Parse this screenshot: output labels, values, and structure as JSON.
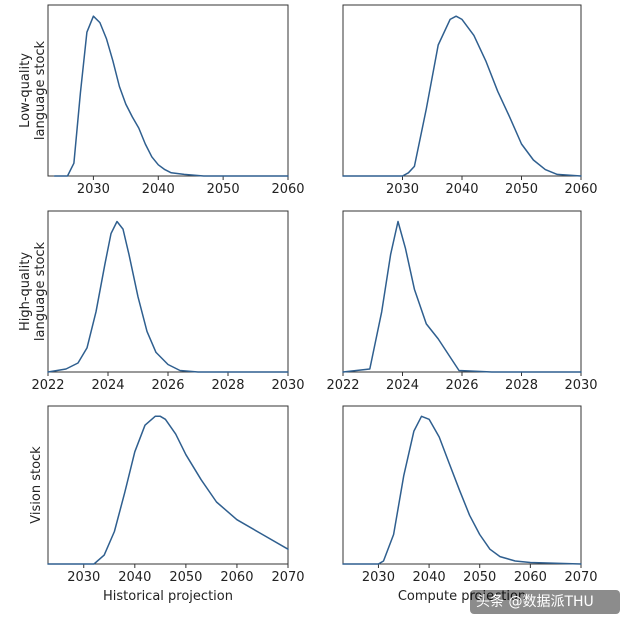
{
  "chart_data": [
    {
      "type": "line",
      "panel": "row1-col1",
      "ylabel": "Low-quality\nlanguage stock",
      "xlabel": "",
      "xlim": [
        2023,
        2060
      ],
      "ylim": [
        0,
        1.07
      ],
      "xticks": [
        "2030",
        "2040",
        "2050",
        "2060"
      ],
      "xtick_values": [
        2030,
        2040,
        2050,
        2060
      ],
      "series": [
        {
          "name": "Historical projection",
          "color": "#2f5f8f",
          "x": [
            2024,
            2026,
            2027,
            2028,
            2029,
            2030,
            2031,
            2032,
            2033,
            2034,
            2035,
            2036,
            2037,
            2038,
            2039,
            2040,
            2041,
            2042,
            2044,
            2047,
            2050,
            2060
          ],
          "y": [
            0.0,
            0.0,
            0.08,
            0.52,
            0.9,
            1.0,
            0.96,
            0.86,
            0.72,
            0.56,
            0.45,
            0.37,
            0.3,
            0.2,
            0.12,
            0.07,
            0.04,
            0.02,
            0.01,
            0.0,
            0.0,
            0.0
          ]
        }
      ]
    },
    {
      "type": "line",
      "panel": "row1-col2",
      "ylabel": "",
      "xlabel": "",
      "xlim": [
        2020,
        2060
      ],
      "ylim": [
        0,
        1.07
      ],
      "xticks": [
        "2030",
        "2040",
        "2050",
        "2060"
      ],
      "xtick_values": [
        2030,
        2040,
        2050,
        2060
      ],
      "series": [
        {
          "name": "Compute projection",
          "color": "#2f5f8f",
          "x": [
            2020,
            2030,
            2031,
            2032,
            2034,
            2036,
            2038,
            2039,
            2040,
            2042,
            2044,
            2046,
            2048,
            2050,
            2052,
            2054,
            2056,
            2060
          ],
          "y": [
            0.0,
            0.0,
            0.02,
            0.06,
            0.42,
            0.82,
            0.98,
            1.0,
            0.98,
            0.88,
            0.72,
            0.53,
            0.37,
            0.2,
            0.1,
            0.04,
            0.01,
            0.0
          ]
        }
      ]
    },
    {
      "type": "line",
      "panel": "row2-col1",
      "ylabel": "High-quality\nlanguage stock",
      "xlabel": "",
      "xlim": [
        2022,
        2030
      ],
      "ylim": [
        0,
        1.07
      ],
      "xticks": [
        "2022",
        "2024",
        "2026",
        "2028",
        "2030"
      ],
      "xtick_values": [
        2022,
        2024,
        2026,
        2028,
        2030
      ],
      "series": [
        {
          "name": "Historical projection",
          "color": "#2f5f8f",
          "x": [
            2022,
            2022.6,
            2023.0,
            2023.3,
            2023.6,
            2023.9,
            2024.1,
            2024.3,
            2024.5,
            2024.7,
            2025.0,
            2025.3,
            2025.6,
            2026.0,
            2026.4,
            2027,
            2030
          ],
          "y": [
            0.0,
            0.02,
            0.06,
            0.16,
            0.4,
            0.72,
            0.92,
            1.0,
            0.95,
            0.78,
            0.5,
            0.27,
            0.13,
            0.05,
            0.01,
            0.0,
            0.0
          ]
        }
      ]
    },
    {
      "type": "line",
      "panel": "row2-col2",
      "ylabel": "",
      "xlabel": "",
      "xlim": [
        2022,
        2030
      ],
      "ylim": [
        0,
        1.07
      ],
      "xticks": [
        "2022",
        "2024",
        "2026",
        "2028",
        "2030"
      ],
      "xtick_values": [
        2022,
        2024,
        2026,
        2028,
        2030
      ],
      "series": [
        {
          "name": "Compute projection",
          "color": "#2f5f8f",
          "x": [
            2022,
            2022.9,
            2023.3,
            2023.6,
            2023.85,
            2024.1,
            2024.4,
            2024.8,
            2025.2,
            2025.6,
            2025.9,
            2027,
            2030
          ],
          "y": [
            0.0,
            0.02,
            0.4,
            0.78,
            1.0,
            0.82,
            0.55,
            0.32,
            0.22,
            0.1,
            0.01,
            0.0,
            0.0
          ]
        }
      ]
    },
    {
      "type": "line",
      "panel": "row3-col1",
      "ylabel": "Vision stock",
      "xlabel": "Historical projection",
      "xlim": [
        2023,
        2070
      ],
      "ylim": [
        0,
        1.07
      ],
      "xticks": [
        "2030",
        "2040",
        "2050",
        "2060",
        "2070"
      ],
      "xtick_values": [
        2030,
        2040,
        2050,
        2060,
        2070
      ],
      "series": [
        {
          "name": "Historical projection",
          "color": "#2f5f8f",
          "x": [
            2023,
            2032,
            2034,
            2036,
            2038,
            2040,
            2042,
            2044,
            2045,
            2046,
            2048,
            2050,
            2053,
            2056,
            2060,
            2065,
            2070
          ],
          "y": [
            0.0,
            0.0,
            0.06,
            0.22,
            0.48,
            0.76,
            0.94,
            1.0,
            1.0,
            0.98,
            0.88,
            0.74,
            0.57,
            0.42,
            0.3,
            0.2,
            0.1
          ]
        }
      ]
    },
    {
      "type": "line",
      "panel": "row3-col2",
      "ylabel": "",
      "xlabel": "Compute projection",
      "xlim": [
        2023,
        2070
      ],
      "ylim": [
        0,
        1.07
      ],
      "xticks": [
        "2030",
        "2040",
        "2050",
        "2060",
        "2070"
      ],
      "xtick_values": [
        2030,
        2040,
        2050,
        2060,
        2070
      ],
      "series": [
        {
          "name": "Compute projection",
          "color": "#2f5f8f",
          "x": [
            2023,
            2030,
            2031,
            2033,
            2035,
            2037,
            2038.5,
            2040,
            2042,
            2044,
            2046,
            2048,
            2050,
            2052,
            2054,
            2057,
            2060,
            2070
          ],
          "y": [
            0.0,
            0.0,
            0.02,
            0.2,
            0.6,
            0.9,
            1.0,
            0.98,
            0.86,
            0.68,
            0.5,
            0.33,
            0.2,
            0.1,
            0.05,
            0.02,
            0.01,
            0.0
          ]
        }
      ]
    }
  ],
  "watermark": {
    "text": "头条 @数据派THU"
  }
}
